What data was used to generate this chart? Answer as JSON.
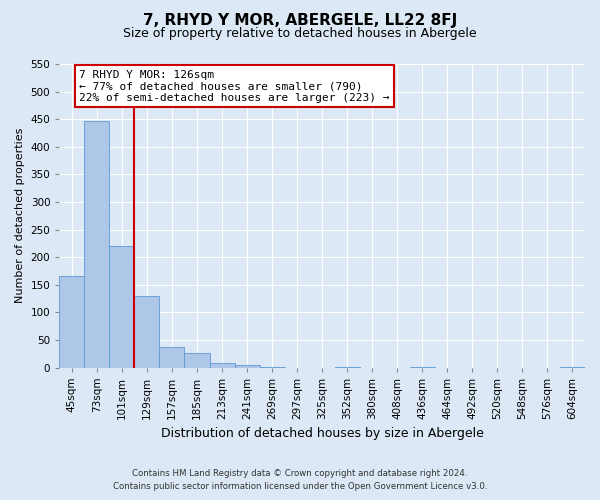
{
  "title": "7, RHYD Y MOR, ABERGELE, LL22 8FJ",
  "subtitle": "Size of property relative to detached houses in Abergele",
  "xlabel": "Distribution of detached houses by size in Abergele",
  "ylabel": "Number of detached properties",
  "bar_labels": [
    "45sqm",
    "73sqm",
    "101sqm",
    "129sqm",
    "157sqm",
    "185sqm",
    "213sqm",
    "241sqm",
    "269sqm",
    "297sqm",
    "325sqm",
    "352sqm",
    "380sqm",
    "408sqm",
    "436sqm",
    "464sqm",
    "492sqm",
    "520sqm",
    "548sqm",
    "576sqm",
    "604sqm"
  ],
  "bar_values": [
    165,
    447,
    220,
    130,
    37,
    26,
    8,
    5,
    1,
    0,
    0,
    1,
    0,
    0,
    1,
    0,
    0,
    0,
    0,
    0,
    1
  ],
  "ylim": [
    0,
    550
  ],
  "yticks": [
    0,
    50,
    100,
    150,
    200,
    250,
    300,
    350,
    400,
    450,
    500,
    550
  ],
  "bar_color": "#aec6e8",
  "bar_edge_color": "#5b9bd5",
  "vline_color": "#cc0000",
  "vline_position": 2.5,
  "annotation_text": "7 RHYD Y MOR: 126sqm\n← 77% of detached houses are smaller (790)\n22% of semi-detached houses are larger (223) →",
  "annotation_box_color": "#ffffff",
  "annotation_box_edge_color": "#cc0000",
  "footer_line1": "Contains HM Land Registry data © Crown copyright and database right 2024.",
  "footer_line2": "Contains public sector information licensed under the Open Government Licence v3.0.",
  "background_color": "#dce8f5",
  "plot_bg_color": "#dce8f5",
  "grid_color": "#ffffff",
  "title_fontsize": 11,
  "subtitle_fontsize": 9,
  "xlabel_fontsize": 9,
  "ylabel_fontsize": 8,
  "tick_fontsize": 7.5,
  "annotation_fontsize": 8
}
